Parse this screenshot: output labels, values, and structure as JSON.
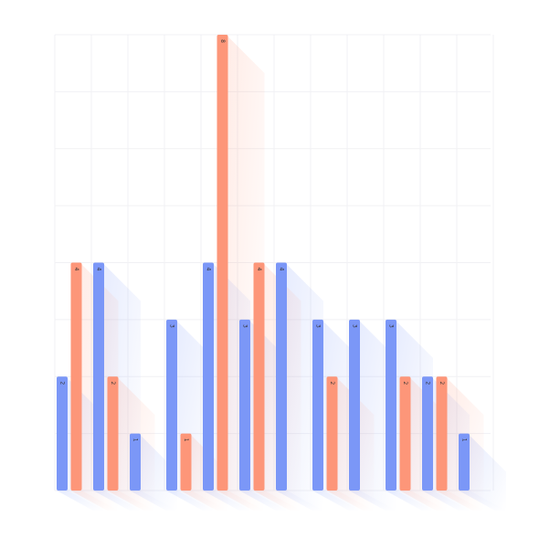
{
  "chart_data": {
    "type": "bar",
    "grid": true,
    "legend": "none",
    "ylim": [
      0,
      8
    ],
    "categories": [
      "",
      "",
      "",
      "",
      "",
      "",
      "",
      "",
      "",
      "",
      "",
      ""
    ],
    "series": [
      {
        "color": "#7b97f7",
        "values": [
          2,
          4,
          1,
          3,
          4,
          3,
          4,
          3,
          3,
          3,
          2,
          1
        ]
      },
      {
        "color": "#fd9679",
        "values": [
          4,
          2,
          0,
          1,
          8,
          4,
          0,
          2,
          0,
          2,
          2,
          0
        ]
      }
    ]
  }
}
